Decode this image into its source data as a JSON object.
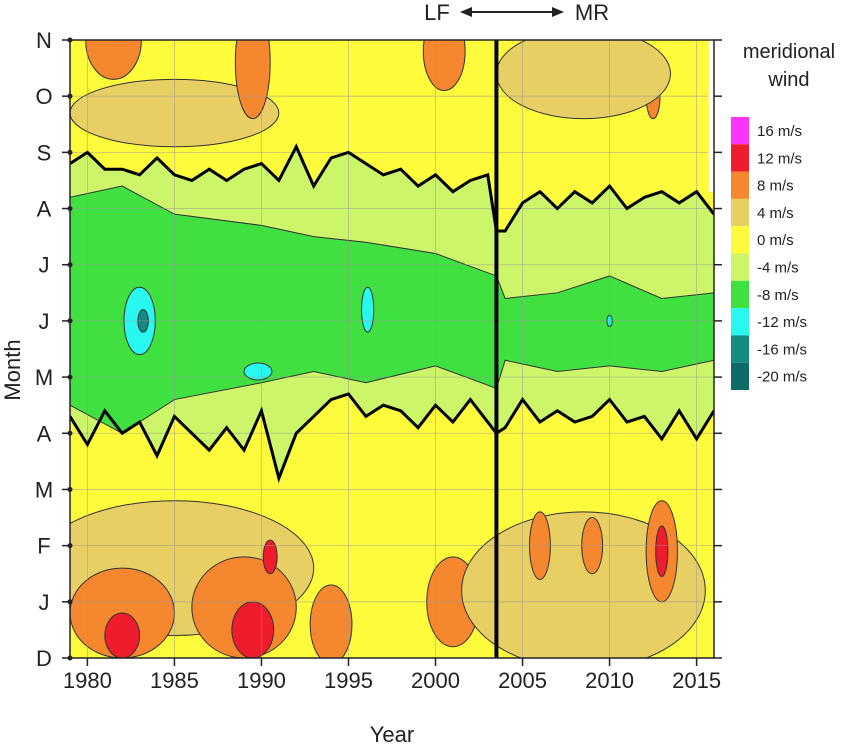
{
  "chart_data": {
    "type": "heatmap",
    "xlabel": "Year",
    "ylabel": "Month",
    "xlim": [
      1979,
      2016
    ],
    "x_ticks": [
      "1980",
      "1985",
      "1990",
      "1995",
      "2000",
      "2005",
      "2010",
      "2015"
    ],
    "y_ticks": [
      "D",
      "J",
      "F",
      "M",
      "A",
      "M",
      "J",
      "J",
      "A",
      "S",
      "O",
      "N"
    ],
    "top_annotation": {
      "left": "LF",
      "arrow": "←→",
      "right": "MR"
    },
    "regime_break_year": 2003.5,
    "legend": {
      "title_line1": "meridional",
      "title_line2": "wind",
      "levels": [
        {
          "label": "16 m/s",
          "color": "#ff33ff"
        },
        {
          "label": "12 m/s",
          "color": "#ee1c2c"
        },
        {
          "label": "8 m/s",
          "color": "#f5872e"
        },
        {
          "label": "4 m/s",
          "color": "#e8cf63"
        },
        {
          "label": "0 m/s",
          "color": "#fdfb3c"
        },
        {
          "label": "-4 m/s",
          "color": "#cdf56a"
        },
        {
          "label": "-8 m/s",
          "color": "#3fe03f"
        },
        {
          "label": "-12 m/s",
          "color": "#28f8f0"
        },
        {
          "label": "-16 m/s",
          "color": "#138a82"
        },
        {
          "label": "-20 m/s",
          "color": "#0c6b66"
        }
      ]
    },
    "zero_contour_bottom": [
      [
        1979,
        4.3
      ],
      [
        1980,
        3.8
      ],
      [
        1981,
        4.4
      ],
      [
        1982,
        4.0
      ],
      [
        1983,
        4.2
      ],
      [
        1984,
        3.6
      ],
      [
        1985,
        4.3
      ],
      [
        1986,
        4.0
      ],
      [
        1987,
        3.7
      ],
      [
        1988,
        4.1
      ],
      [
        1989,
        3.7
      ],
      [
        1990,
        4.4
      ],
      [
        1991,
        3.2
      ],
      [
        1992,
        4.0
      ],
      [
        1993,
        4.3
      ],
      [
        1994,
        4.6
      ],
      [
        1995,
        4.7
      ],
      [
        1996,
        4.3
      ],
      [
        1997,
        4.5
      ],
      [
        1998,
        4.4
      ],
      [
        1999,
        4.1
      ],
      [
        2000,
        4.5
      ],
      [
        2001,
        4.2
      ],
      [
        2002,
        4.6
      ],
      [
        2003,
        4.2
      ],
      [
        2003.5,
        4.0
      ],
      [
        2004,
        4.1
      ],
      [
        2005,
        4.6
      ],
      [
        2006,
        4.2
      ],
      [
        2007,
        4.4
      ],
      [
        2008,
        4.2
      ],
      [
        2009,
        4.3
      ],
      [
        2010,
        4.6
      ],
      [
        2011,
        4.2
      ],
      [
        2012,
        4.3
      ],
      [
        2013,
        3.9
      ],
      [
        2014,
        4.4
      ],
      [
        2015,
        3.9
      ],
      [
        2016,
        4.4
      ]
    ],
    "zero_contour_top": [
      [
        1979,
        8.8
      ],
      [
        1980,
        9.0
      ],
      [
        1981,
        8.7
      ],
      [
        1982,
        8.7
      ],
      [
        1983,
        8.6
      ],
      [
        1984,
        8.9
      ],
      [
        1985,
        8.6
      ],
      [
        1986,
        8.5
      ],
      [
        1987,
        8.7
      ],
      [
        1988,
        8.5
      ],
      [
        1989,
        8.7
      ],
      [
        1990,
        8.8
      ],
      [
        1991,
        8.5
      ],
      [
        1992,
        9.1
      ],
      [
        1993,
        8.4
      ],
      [
        1994,
        8.9
      ],
      [
        1995,
        9.0
      ],
      [
        1996,
        8.8
      ],
      [
        1997,
        8.6
      ],
      [
        1998,
        8.7
      ],
      [
        1999,
        8.4
      ],
      [
        2000,
        8.6
      ],
      [
        2001,
        8.3
      ],
      [
        2002,
        8.5
      ],
      [
        2003,
        8.6
      ],
      [
        2003.5,
        7.6
      ],
      [
        2004,
        7.6
      ],
      [
        2005,
        8.1
      ],
      [
        2006,
        8.3
      ],
      [
        2007,
        8.0
      ],
      [
        2008,
        8.3
      ],
      [
        2009,
        8.1
      ],
      [
        2010,
        8.4
      ],
      [
        2011,
        8.0
      ],
      [
        2012,
        8.2
      ],
      [
        2013,
        8.3
      ],
      [
        2014,
        8.1
      ],
      [
        2015,
        8.3
      ],
      [
        2016,
        7.9
      ]
    ],
    "minus8_bottom": [
      [
        1979,
        4.5
      ],
      [
        1982,
        4.0
      ],
      [
        1985,
        4.6
      ],
      [
        1990,
        4.9
      ],
      [
        1993,
        5.1
      ],
      [
        1996,
        4.9
      ],
      [
        2000,
        5.2
      ],
      [
        2003.5,
        4.8
      ],
      [
        2004,
        5.3
      ],
      [
        2007,
        5.1
      ],
      [
        2010,
        5.2
      ],
      [
        2013,
        5.1
      ],
      [
        2016,
        5.3
      ]
    ],
    "minus8_top": [
      [
        1979,
        8.2
      ],
      [
        1982,
        8.4
      ],
      [
        1985,
        7.9
      ],
      [
        1990,
        7.7
      ],
      [
        1993,
        7.5
      ],
      [
        1996,
        7.4
      ],
      [
        2000,
        7.2
      ],
      [
        2003.5,
        6.8
      ],
      [
        2004,
        6.4
      ],
      [
        2007,
        6.5
      ],
      [
        2010,
        6.8
      ],
      [
        2013,
        6.4
      ],
      [
        2016,
        6.5
      ]
    ],
    "negative_patches": [
      {
        "level": "-12",
        "x": 1983,
        "y": 6.0,
        "rx": 0.9,
        "ry": 0.6
      },
      {
        "level": "-16",
        "x": 1983.2,
        "y": 6.0,
        "rx": 0.3,
        "ry": 0.2
      },
      {
        "level": "-12",
        "x": 1989.8,
        "y": 5.1,
        "rx": 0.8,
        "ry": 0.15
      },
      {
        "level": "-12",
        "x": 1996.1,
        "y": 6.2,
        "rx": 0.35,
        "ry": 0.4
      },
      {
        "level": "-12",
        "x": 2010,
        "y": 6.0,
        "rx": 0.15,
        "ry": 0.1
      }
    ],
    "positive_patches": [
      {
        "level": "4",
        "x": 1985,
        "y": 9.7,
        "rx": 6,
        "ry": 0.6
      },
      {
        "level": "8",
        "x": 1981.5,
        "y": 11.0,
        "rx": 1.6,
        "ry": 0.7
      },
      {
        "level": "8",
        "x": 1989.5,
        "y": 10.6,
        "rx": 1.0,
        "ry": 1.0
      },
      {
        "level": "8",
        "x": 2000.5,
        "y": 10.8,
        "rx": 1.2,
        "ry": 0.7
      },
      {
        "level": "8",
        "x": 2012.5,
        "y": 10.0,
        "rx": 0.4,
        "ry": 0.4
      },
      {
        "level": "4",
        "x": 2008.5,
        "y": 10.4,
        "rx": 5,
        "ry": 0.8
      },
      {
        "level": "4",
        "x": 1985,
        "y": 1.6,
        "rx": 8,
        "ry": 1.2
      },
      {
        "level": "8",
        "x": 1982,
        "y": 0.8,
        "rx": 3,
        "ry": 0.8
      },
      {
        "level": "8",
        "x": 1989,
        "y": 0.9,
        "rx": 3,
        "ry": 0.9
      },
      {
        "level": "12",
        "x": 1982,
        "y": 0.4,
        "rx": 1.0,
        "ry": 0.4
      },
      {
        "level": "12",
        "x": 1989.5,
        "y": 0.5,
        "rx": 1.2,
        "ry": 0.5
      },
      {
        "level": "12",
        "x": 1994,
        "y": 0.3,
        "rx": 0.5,
        "ry": 0.3
      },
      {
        "level": "8",
        "x": 1994,
        "y": 0.6,
        "rx": 1.2,
        "ry": 0.7
      },
      {
        "level": "8",
        "x": 2001,
        "y": 1.0,
        "rx": 1.5,
        "ry": 0.8
      },
      {
        "level": "4",
        "x": 2008.5,
        "y": 1.2,
        "rx": 7,
        "ry": 1.4
      },
      {
        "level": "8",
        "x": 2006,
        "y": 2.0,
        "rx": 0.6,
        "ry": 0.6
      },
      {
        "level": "8",
        "x": 2009,
        "y": 2.0,
        "rx": 0.6,
        "ry": 0.5
      },
      {
        "level": "8",
        "x": 2013,
        "y": 1.9,
        "rx": 0.9,
        "ry": 0.9
      },
      {
        "level": "12",
        "x": 2013,
        "y": 1.9,
        "rx": 0.35,
        "ry": 0.45
      },
      {
        "level": "12",
        "x": 1990.5,
        "y": 1.8,
        "rx": 0.4,
        "ry": 0.3
      }
    ]
  }
}
